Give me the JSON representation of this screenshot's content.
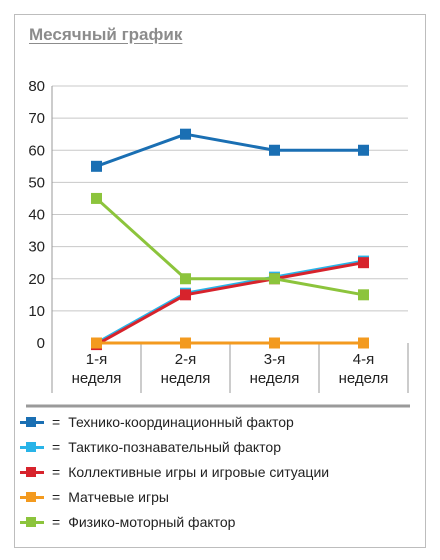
{
  "chart_data": {
    "type": "line",
    "title": "Месячный график",
    "categories": [
      [
        "1-я",
        "неделя"
      ],
      [
        "2-я",
        "неделя"
      ],
      [
        "3-я",
        "неделя"
      ],
      [
        "4-я",
        "неделя"
      ]
    ],
    "ylim": [
      0,
      80
    ],
    "yticks": [
      0,
      10,
      20,
      30,
      40,
      50,
      60,
      70,
      80
    ],
    "grid": true,
    "legend_position": "bottom",
    "legend_separator": "=",
    "series": [
      {
        "name": "Технико-координационный фактор",
        "color": "#1a6fb3",
        "values": [
          55,
          65,
          60,
          60
        ]
      },
      {
        "name": "Тактико-познавательный фактор",
        "color": "#29b4e8",
        "values": [
          0,
          15.5,
          20.5,
          25.5
        ]
      },
      {
        "name": "Коллективные игры и игровые ситуации",
        "color": "#d7232c",
        "values": [
          -0.5,
          15,
          20,
          25
        ]
      },
      {
        "name": "Матчевые игры",
        "color": "#f39a1f",
        "values": [
          0,
          0,
          0,
          0
        ]
      },
      {
        "name": "Физико-моторный фактор",
        "color": "#8cc43c",
        "values": [
          45,
          20,
          20,
          15
        ]
      }
    ]
  }
}
